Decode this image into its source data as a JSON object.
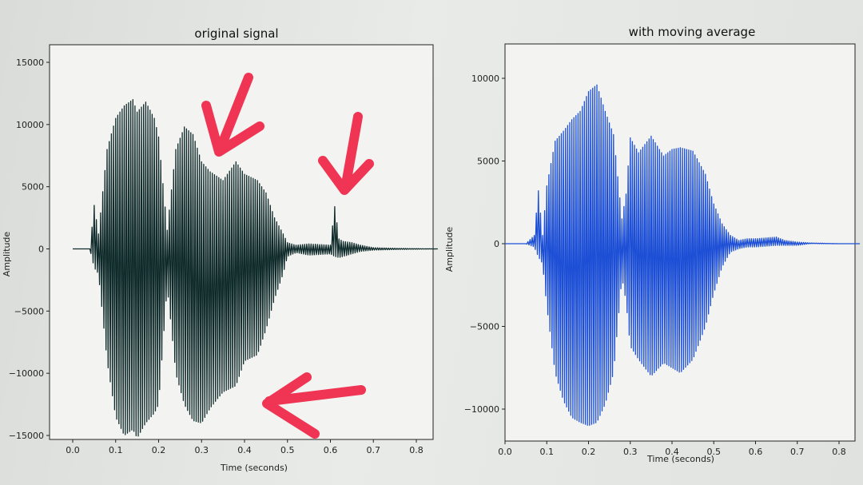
{
  "chart_data": [
    {
      "type": "line",
      "title": "original signal",
      "xlabel": "Time (seconds)",
      "ylabel": "Amplitude",
      "xlim": [
        0.0,
        0.85
      ],
      "ylim": [
        -16000,
        16000
      ],
      "xticks": [
        "0.0",
        "0.1",
        "0.2",
        "0.3",
        "0.4",
        "0.5",
        "0.6",
        "0.7",
        "0.8"
      ],
      "yticks": [
        "15000",
        "10000",
        "5000",
        "0",
        "−5000",
        "−10000",
        "−15000"
      ],
      "grid": false,
      "series": [
        {
          "color": "#0f2a2a",
          "envelope": {
            "t": [
              0.0,
              0.03,
              0.04,
              0.05,
              0.06,
              0.08,
              0.1,
              0.12,
              0.14,
              0.15,
              0.17,
              0.19,
              0.2,
              0.22,
              0.24,
              0.26,
              0.28,
              0.3,
              0.32,
              0.35,
              0.38,
              0.4,
              0.43,
              0.45,
              0.47,
              0.49,
              0.5,
              0.52,
              0.55,
              0.6,
              0.61,
              0.62,
              0.63,
              0.65,
              0.67,
              0.7,
              0.75,
              0.85
            ],
            "max": [
              0,
              0,
              0,
              3500,
              1200,
              8000,
              10500,
              11500,
              12000,
              11000,
              11800,
              10500,
              9000,
              1500,
              8000,
              9800,
              9200,
              7000,
              6200,
              5500,
              7000,
              6000,
              5500,
              4500,
              2500,
              1200,
              500,
              300,
              400,
              300,
              3400,
              800,
              600,
              500,
              300,
              100,
              50,
              0
            ],
            "min": [
              0,
              0,
              0,
              -1500,
              -2000,
              -9000,
              -13500,
              -15000,
              -14500,
              -15200,
              -14000,
              -13200,
              -12500,
              -3000,
              -10000,
              -12500,
              -13800,
              -14000,
              -12800,
              -11500,
              -11000,
              -9000,
              -8500,
              -6500,
              -4000,
              -2000,
              -600,
              -300,
              -500,
              -400,
              -600,
              -700,
              -600,
              -400,
              -200,
              -100,
              -50,
              0
            ]
          }
        }
      ]
    },
    {
      "type": "line",
      "title": "with moving average",
      "xlabel": "Time (seconds)",
      "ylabel": "Amplitude",
      "xlim": [
        0.0,
        0.85
      ],
      "ylim": [
        -11500,
        12000
      ],
      "xticks": [
        "0.0",
        "0.1",
        "0.2",
        "0.3",
        "0.4",
        "0.5",
        "0.6",
        "0.7",
        "0.8"
      ],
      "yticks": [
        "10000",
        "5000",
        "0",
        "−5000",
        "−10000"
      ],
      "grid": false,
      "series": [
        {
          "color": "#1d4fd6",
          "envelope": {
            "t": [
              0.0,
              0.05,
              0.07,
              0.08,
              0.09,
              0.1,
              0.12,
              0.14,
              0.16,
              0.18,
              0.2,
              0.22,
              0.24,
              0.26,
              0.28,
              0.29,
              0.3,
              0.32,
              0.35,
              0.38,
              0.4,
              0.42,
              0.45,
              0.48,
              0.5,
              0.52,
              0.54,
              0.56,
              0.58,
              0.6,
              0.65,
              0.67,
              0.7,
              0.73,
              0.8,
              0.85
            ],
            "max": [
              0,
              0,
              500,
              3200,
              500,
              3500,
              6200,
              6800,
              7500,
              8000,
              9200,
              9600,
              8000,
              6600,
              1500,
              3000,
              6400,
              5500,
              6500,
              5300,
              5700,
              5800,
              5600,
              4200,
              2400,
              1200,
              500,
              200,
              300,
              300,
              400,
              200,
              100,
              50,
              0,
              0
            ],
            "min": [
              0,
              0,
              -200,
              -800,
              -1200,
              -3800,
              -7800,
              -9500,
              -10500,
              -10800,
              -11000,
              -10800,
              -9700,
              -7800,
              -2000,
              -3500,
              -6200,
              -7000,
              -8000,
              -7200,
              -7500,
              -7800,
              -7000,
              -5000,
              -3000,
              -1400,
              -500,
              -300,
              -200,
              -200,
              -100,
              -100,
              -100,
              0,
              0,
              0
            ]
          }
        }
      ]
    }
  ],
  "annotations": {
    "arrow_color": "#ef3553",
    "arrow_count": 3
  }
}
